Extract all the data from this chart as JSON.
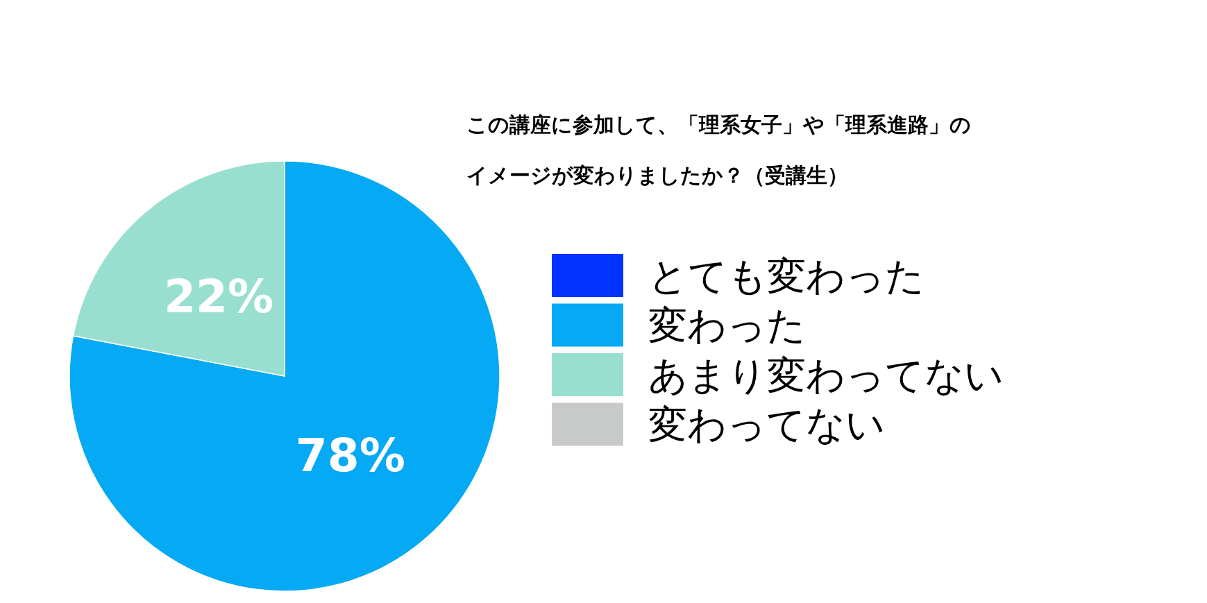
{
  "chart_data": {
    "type": "pie",
    "title": "この講座に参加して、「理系女子」や「理系進路」のイメージが変わりましたか？（受講生）",
    "categories": [
      "とても変わった",
      "変わった",
      "あまり変わってない",
      "変わってない"
    ],
    "values": [
      0,
      78,
      22,
      0
    ],
    "colors": [
      "#0033ff",
      "#05a9f4",
      "#98dfcf",
      "#c8c9c9"
    ],
    "value_labels": [
      null,
      "78%",
      "22%",
      null
    ],
    "legend": "right"
  }
}
